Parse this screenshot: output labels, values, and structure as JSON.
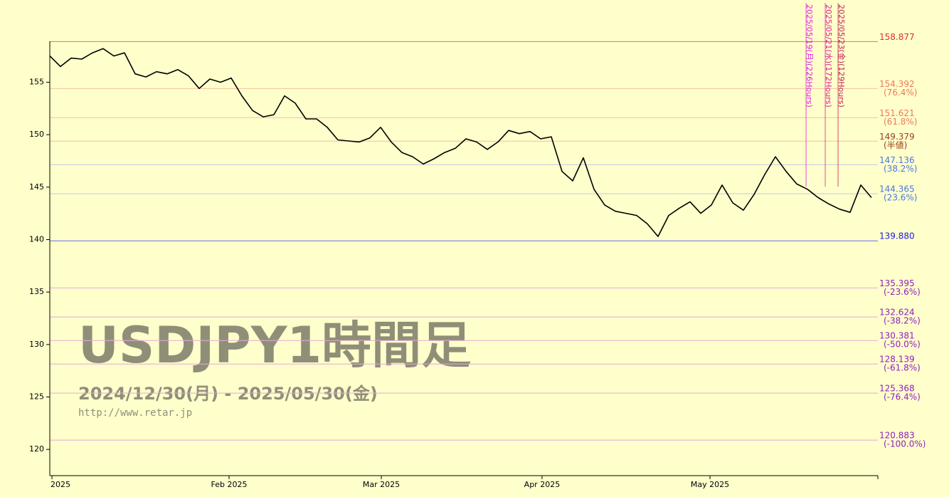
{
  "chart_data": {
    "type": "line",
    "title": "USDJPY1時間足",
    "subtitle": "2024/12/30(月) - 2025/05/30(金)",
    "source": "http://www.retar.jp",
    "x": [
      0,
      1,
      2,
      3,
      4,
      5,
      6,
      7,
      8,
      9,
      10,
      11,
      12,
      13,
      14,
      15,
      16,
      17,
      18,
      19,
      20,
      21,
      22,
      23,
      24,
      25,
      26,
      27,
      28,
      29,
      30,
      31,
      32,
      33,
      34,
      35,
      36,
      37,
      38,
      39,
      40,
      41,
      42,
      43,
      44,
      45,
      46,
      47,
      48,
      49,
      50,
      51,
      52,
      53,
      54,
      55,
      56,
      57,
      58,
      59,
      60,
      61,
      62,
      63,
      64,
      65,
      66,
      67,
      68,
      69,
      70,
      71,
      72,
      73,
      74,
      75,
      76,
      77
    ],
    "series": [
      {
        "color": "#000000",
        "values": [
          157.5,
          156.5,
          157.3,
          157.2,
          157.8,
          158.2,
          157.5,
          157.8,
          155.8,
          155.5,
          156.0,
          155.8,
          156.2,
          155.6,
          154.4,
          155.3,
          155.0,
          155.4,
          153.7,
          152.3,
          151.7,
          151.9,
          153.7,
          153.0,
          151.5,
          151.5,
          150.7,
          149.5,
          149.4,
          149.3,
          149.7,
          150.7,
          149.3,
          148.3,
          147.9,
          147.2,
          147.7,
          148.3,
          148.7,
          149.6,
          149.3,
          148.6,
          149.3,
          150.4,
          150.1,
          150.3,
          149.6,
          149.8,
          146.5,
          145.6,
          147.8,
          144.8,
          143.3,
          142.7,
          142.5,
          142.3,
          141.5,
          140.3,
          142.3,
          143.0,
          143.6,
          142.5,
          143.3,
          145.2,
          143.5,
          142.8,
          144.3,
          146.2,
          147.9,
          146.5,
          145.3,
          144.8,
          144.0,
          143.4,
          142.9,
          142.6,
          145.2,
          144.0
        ]
      }
    ],
    "xlim": [
      0,
      77.6
    ],
    "xticks": [
      {
        "value": 0.2,
        "label": "2025"
      },
      {
        "value": 16.8,
        "label": "Feb 2025"
      },
      {
        "value": 31.07,
        "label": "Mar 2025"
      },
      {
        "value": 46.13,
        "label": "Apr 2025"
      },
      {
        "value": 61.87,
        "label": "May 2025"
      }
    ],
    "ylim": [
      117.5,
      158.9
    ],
    "yticks": [
      120,
      125,
      130,
      135,
      140,
      145,
      150,
      155
    ],
    "levels": [
      {
        "value": 158.877,
        "label": "158.877",
        "color": "#e03030",
        "line_color": "#e07070"
      },
      {
        "value": 154.392,
        "label": "154.392",
        "note": "(76.4%)",
        "color": "#f07858",
        "line_color": "#f4c0a0"
      },
      {
        "value": 151.621,
        "label": "151.621",
        "note": "(61.8%)",
        "color": "#f07858",
        "line_color": "#f4c0a0"
      },
      {
        "value": 149.379,
        "label": "149.379",
        "note": "(半値)",
        "color": "#a04020",
        "line_color": "#f4c0a0"
      },
      {
        "value": 147.136,
        "label": "147.136",
        "note": "(38.2%)",
        "color": "#4a78e0",
        "line_color": "#c0c8e8"
      },
      {
        "value": 144.365,
        "label": "144.365",
        "note": "(23.6%)",
        "color": "#4a78e0",
        "line_color": "#c0c8e8"
      },
      {
        "value": 139.88,
        "label": "139.880",
        "color": "#2020e0",
        "line_color": "#6070e0"
      },
      {
        "value": 135.395,
        "label": "135.395",
        "note": "(-23.6%)",
        "color": "#9020c0",
        "line_color": "#e8a8d8"
      },
      {
        "value": 132.624,
        "label": "132.624",
        "note": "(-38.2%)",
        "color": "#9020c0",
        "line_color": "#e8a8d8"
      },
      {
        "value": 130.381,
        "label": "130.381",
        "note": "(-50.0%)",
        "color": "#9020c0",
        "line_color": "#e8a8d8"
      },
      {
        "value": 128.139,
        "label": "128.139",
        "note": "(-61.8%)",
        "color": "#9020c0",
        "line_color": "#e8a8d8"
      },
      {
        "value": 125.368,
        "label": "125.368",
        "note": "(-76.4%)",
        "color": "#9020c0",
        "line_color": "#e8a8d8"
      },
      {
        "value": 120.883,
        "label": "120.883",
        "note": "(-100.0%)",
        "color": "#9020c0",
        "line_color": "#e8a8d8"
      }
    ],
    "markers": [
      {
        "x": 70.87,
        "label": "2025/05/19(月)(226Hours)",
        "color": "#e020e0"
      },
      {
        "x": 72.67,
        "label": "2025/05/21(水)(172Hours)",
        "color": "#e02090"
      },
      {
        "x": 73.87,
        "label": "2025/05/23(金)(129Hours)",
        "color": "#c02050"
      }
    ]
  }
}
